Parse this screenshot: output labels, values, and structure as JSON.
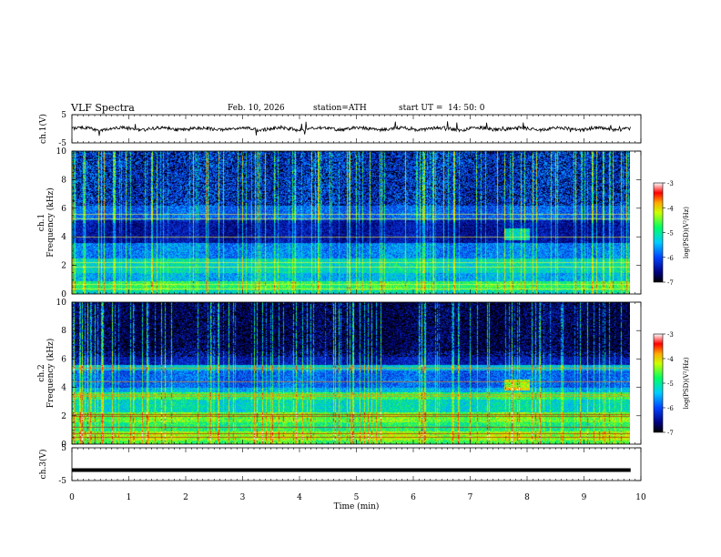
{
  "header": {
    "title": "VLF  Spectra",
    "date": "Feb. 10, 2026",
    "station": "station=ATH",
    "start_label": "start  UT  =",
    "start_time": "14: 50: 0"
  },
  "chart_data": [
    {
      "id": "ch1-waveform",
      "type": "line",
      "ylabel": "ch.1(V)",
      "ylim": [
        -5,
        5
      ],
      "y_ticks": [
        "5",
        "-5"
      ],
      "x_range_min": [
        0,
        9.82
      ],
      "baseline_v": 0.0,
      "amplitude_v": 1.2
    },
    {
      "id": "ch1-spectrogram",
      "type": "heatmap",
      "ylabel": "ch.1",
      "ylabel2": "Frequency  (kHz)",
      "ylim": [
        0,
        10
      ],
      "y_ticks": [
        "0",
        "2",
        "4",
        "6",
        "8",
        "10"
      ],
      "x_range_min": [
        0,
        9.82
      ],
      "colorbar": {
        "label": "log(PSD)(V²/Hz)",
        "range": [
          -7,
          -3
        ],
        "ticks": [
          "-3",
          "-4",
          "-5",
          "-6",
          "-7"
        ]
      },
      "notable_features": [
        {
          "desc": "strong emission band",
          "freq_khz": [
            0.2,
            0.9
          ]
        },
        {
          "desc": "enhanced band",
          "freq_khz": [
            1.8,
            2.4
          ]
        },
        {
          "desc": "quiet band",
          "freq_khz": [
            3.6,
            5.2
          ]
        },
        {
          "desc": "burst",
          "time_min": 7.8,
          "freq_khz": [
            3.8,
            4.6
          ]
        }
      ]
    },
    {
      "id": "ch2-spectrogram",
      "type": "heatmap",
      "ylabel": "ch.2",
      "ylabel2": "Frequency  (kHz)",
      "ylim": [
        0,
        10
      ],
      "y_ticks": [
        "0",
        "2",
        "4",
        "6",
        "8",
        "10"
      ],
      "x_range_min": [
        0,
        9.82
      ],
      "colorbar": {
        "label": "log(PSD)(V²/Hz)",
        "range": [
          -7,
          -3
        ],
        "ticks": [
          "-3",
          "-4",
          "-5",
          "-6",
          "-7"
        ]
      },
      "notable_features": [
        {
          "desc": "strong lines",
          "freq_khz": [
            0.6,
            2.2
          ]
        },
        {
          "desc": "band",
          "freq_khz": [
            3.2,
            3.6
          ]
        },
        {
          "desc": "burst",
          "time_min": 7.9,
          "freq_khz": [
            3.8,
            4.6
          ]
        }
      ]
    },
    {
      "id": "ch3-waveform",
      "type": "line",
      "ylabel": "ch.3(V)",
      "ylim": [
        -5,
        5
      ],
      "y_ticks": [
        "5",
        "-5"
      ],
      "x_range_min": [
        0,
        9.82
      ],
      "baseline_v": -1.8
    }
  ],
  "x_axis": {
    "label": "Time  (min)",
    "range": [
      0,
      10
    ],
    "ticks": [
      "0",
      "1",
      "2",
      "3",
      "4",
      "5",
      "6",
      "7",
      "8",
      "9",
      "10"
    ]
  }
}
